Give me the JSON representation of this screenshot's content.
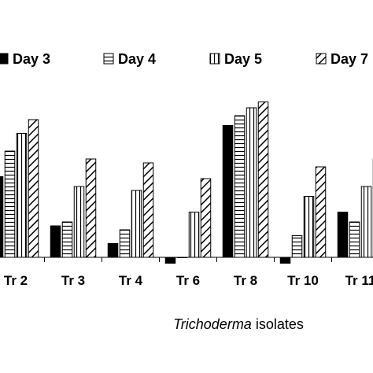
{
  "chart_data": {
    "type": "bar",
    "xlabel_italic": "Trichoderma",
    "xlabel_rest": " isolates",
    "categories": [
      "Tr 2",
      "Tr 3",
      "Tr 4",
      "Tr 6",
      "Tr 8",
      "Tr 10",
      "Tr 11"
    ],
    "series": [
      {
        "name": "Day 3",
        "pattern": "solid",
        "values": [
          2.05,
          0.8,
          0.35,
          -0.15,
          3.35,
          -0.15,
          1.15
        ]
      },
      {
        "name": "Day 4",
        "pattern": "horizontal",
        "values": [
          2.7,
          0.9,
          0.7,
          0.0,
          3.6,
          0.55,
          0.9
        ]
      },
      {
        "name": "Day 5",
        "pattern": "vertical",
        "values": [
          3.15,
          1.8,
          1.7,
          1.15,
          3.8,
          1.55,
          1.8
        ]
      },
      {
        "name": "Day 7",
        "pattern": "diagonal",
        "values": [
          3.5,
          2.5,
          2.4,
          2.0,
          3.95,
          2.3,
          2.5
        ]
      }
    ],
    "ylim": [
      -0.3,
      4.1
    ],
    "grid": false,
    "legend_position": "top"
  }
}
